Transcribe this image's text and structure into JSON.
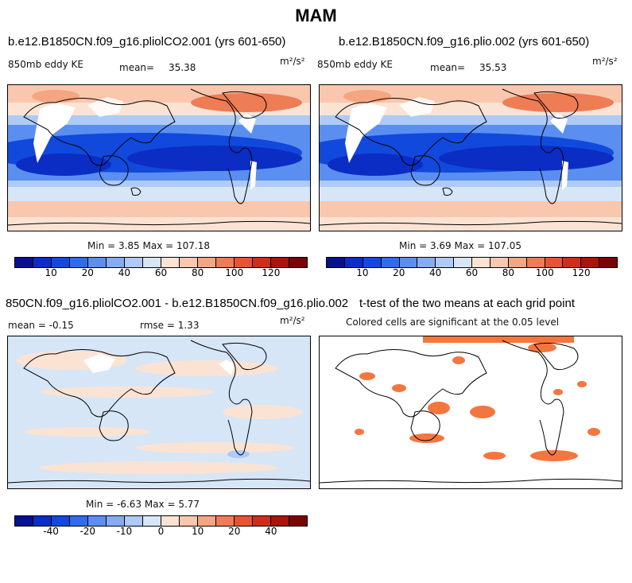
{
  "page": {
    "title": "MAM"
  },
  "panels": {
    "top_left": {
      "title": "b.e12.B1850CN.f09_g16.pliolCO2.001 (yrs 601-650)",
      "variable": "850mb eddy KE",
      "mean_label": "mean=",
      "mean_value": "35.38",
      "units": "m²/s²",
      "minmax": "Min =   3.85 Max = 107.18"
    },
    "top_right": {
      "title": "b.e12.B1850CN.f09_g16.plio.002 (yrs 601-650)",
      "variable": "850mb eddy KE",
      "mean_label": "mean=",
      "mean_value": "35.53",
      "units": "m²/s²",
      "minmax": "Min =   3.69 Max = 107.05"
    },
    "bottom_left": {
      "title": "850CN.f09_g16.pliolCO2.001 - b.e12.B1850CN.f09_g16.plio.002",
      "mean_text": "mean =  -0.15",
      "rmse_text": "rmse =   1.33",
      "units": "m²/s²",
      "minmax": "Min =  -6.63 Max =   5.77"
    },
    "bottom_right": {
      "title": "t-test of the two means at each grid point",
      "subtitle": "Colored cells are significant at the 0.05 level"
    }
  },
  "colorbars": {
    "abs": {
      "colors": [
        "#08118c",
        "#0b2dc4",
        "#1149dd",
        "#2d6de8",
        "#5a8ff0",
        "#85acf3",
        "#aecaf6",
        "#d6e6f7",
        "#fbe3d4",
        "#f8c7ad",
        "#f4a582",
        "#ee7c55",
        "#e55532",
        "#cc3018",
        "#a8150a",
        "#7a0403"
      ],
      "labels": [
        "10",
        "20",
        "40",
        "60",
        "80",
        "100",
        "120"
      ]
    },
    "diff": {
      "colors": [
        "#08118c",
        "#0b2dc4",
        "#1149dd",
        "#2d6de8",
        "#5a8ff0",
        "#85acf3",
        "#aecaf6",
        "#d6e6f7",
        "#fbe3d4",
        "#f8c7ad",
        "#f4a582",
        "#ee7c55",
        "#e55532",
        "#cc3018",
        "#a8150a",
        "#7a0403"
      ],
      "labels": [
        "-40",
        "-20",
        "-10",
        "0",
        "10",
        "20",
        "40"
      ]
    }
  }
}
